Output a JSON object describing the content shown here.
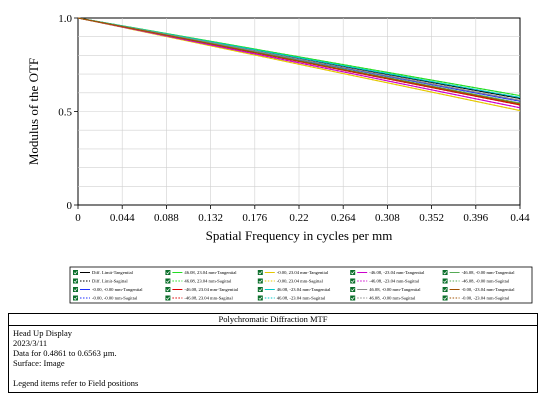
{
  "chart_data": {
    "type": "line",
    "title": "Polychromatic Diffraction MTF",
    "xlabel": "Spatial Frequency in cycles per mm",
    "ylabel": "Modulus of the OTF",
    "xlim": [
      0,
      0.44
    ],
    "ylim": [
      0,
      1.0
    ],
    "x_ticks": [
      "0",
      "0.044",
      "0.088",
      "0.132",
      "0.176",
      "0.22",
      "0.264",
      "0.308",
      "0.352",
      "0.396",
      "0.44"
    ],
    "y_ticks": [
      "0",
      "0.5",
      "1.0"
    ],
    "x_tick_values": [
      0,
      0.044,
      0.088,
      0.132,
      0.176,
      0.22,
      0.264,
      0.308,
      0.352,
      0.396,
      0.44
    ],
    "y_tick_values": [
      0,
      0.5,
      1.0
    ],
    "grid": true,
    "legend_position": "bottom",
    "series": [
      {
        "name": "Diff. Limit-Tangential",
        "color": "#000000",
        "dash": "solid",
        "x": [
          0,
          0.44
        ],
        "y": [
          1.0,
          0.57
        ]
      },
      {
        "name": "Diff. Limit-Sagittal",
        "color": "#000000",
        "dash": "dotted",
        "x": [
          0,
          0.44
        ],
        "y": [
          1.0,
          0.57
        ]
      },
      {
        "name": "-0.00, -0.00 mm-Tangential",
        "color": "#1f2fff",
        "dash": "solid",
        "x": [
          0,
          0.44
        ],
        "y": [
          1.0,
          0.555
        ]
      },
      {
        "name": "-0.00, -0.00 mm-Sagittal",
        "color": "#1f2fff",
        "dash": "dotted",
        "x": [
          0,
          0.44
        ],
        "y": [
          1.0,
          0.555
        ]
      },
      {
        "name": "46.08, 23.04 mm-Tangential",
        "color": "#22dd22",
        "dash": "solid",
        "x": [
          0,
          0.44
        ],
        "y": [
          1.0,
          0.585
        ]
      },
      {
        "name": "46.08, 23.04 mm-Sagittal",
        "color": "#22dd22",
        "dash": "dotted",
        "x": [
          0,
          0.44
        ],
        "y": [
          1.0,
          0.585
        ]
      },
      {
        "name": "-46.08, 23.04 mm-Tangential",
        "color": "#dd0000",
        "dash": "solid",
        "x": [
          0,
          0.44
        ],
        "y": [
          1.0,
          0.535
        ]
      },
      {
        "name": "-46.08, 23.04 mm-Sagittal",
        "color": "#dd0000",
        "dash": "dotted",
        "x": [
          0,
          0.44
        ],
        "y": [
          1.0,
          0.535
        ]
      },
      {
        "name": "-0.00, 23.04 mm-Tangential",
        "color": "#e5c800",
        "dash": "solid",
        "x": [
          0,
          0.44
        ],
        "y": [
          1.0,
          0.505
        ]
      },
      {
        "name": "-0.00, 23.04 mm-Sagittal",
        "color": "#e5c800",
        "dash": "dotted",
        "x": [
          0,
          0.44
        ],
        "y": [
          1.0,
          0.505
        ]
      },
      {
        "name": "46.08, -23.04 mm-Tangential",
        "color": "#00c8c8",
        "dash": "solid",
        "x": [
          0,
          0.44
        ],
        "y": [
          1.0,
          0.575
        ]
      },
      {
        "name": "46.08, -23.04 mm-Sagittal",
        "color": "#00c8c8",
        "dash": "dotted",
        "x": [
          0,
          0.44
        ],
        "y": [
          1.0,
          0.575
        ]
      },
      {
        "name": "-46.08, -23.04 mm-Tangential",
        "color": "#cc00cc",
        "dash": "solid",
        "x": [
          0,
          0.44
        ],
        "y": [
          1.0,
          0.52
        ]
      },
      {
        "name": "-46.08, -23.04 mm-Sagittal",
        "color": "#cc00cc",
        "dash": "dotted",
        "x": [
          0,
          0.44
        ],
        "y": [
          1.0,
          0.52
        ]
      },
      {
        "name": "46.08, -0.00 mm-Tangential",
        "color": "#8a8a8a",
        "dash": "solid",
        "x": [
          0,
          0.44
        ],
        "y": [
          1.0,
          0.56
        ]
      },
      {
        "name": "46.08, -0.00 mm-Sagittal",
        "color": "#8a8a8a",
        "dash": "dotted",
        "x": [
          0,
          0.44
        ],
        "y": [
          1.0,
          0.56
        ]
      },
      {
        "name": "-46.08, -0.00 mm-Tangential",
        "color": "#55aa55",
        "dash": "solid",
        "x": [
          0,
          0.44
        ],
        "y": [
          1.0,
          0.545
        ]
      },
      {
        "name": "-46.08, -0.00 mm-Sagittal",
        "color": "#55aa55",
        "dash": "dotted",
        "x": [
          0,
          0.44
        ],
        "y": [
          1.0,
          0.545
        ]
      },
      {
        "name": "-0.00, -23.04 mm-Tangential",
        "color": "#a05000",
        "dash": "solid",
        "x": [
          0,
          0.44
        ],
        "y": [
          1.0,
          0.54
        ]
      },
      {
        "name": "-0.00, -23.04 mm-Sagittal",
        "color": "#a05000",
        "dash": "dotted",
        "x": [
          0,
          0.44
        ],
        "y": [
          1.0,
          0.54
        ]
      }
    ]
  },
  "info": {
    "title": "Polychromatic Diffraction MTF",
    "lines": [
      "Head Up Display",
      "2023/3/11",
      "Data for 0.4861 to 0.6563 µm.",
      "Surface: Image"
    ],
    "note": "Legend items refer to Field positions"
  }
}
